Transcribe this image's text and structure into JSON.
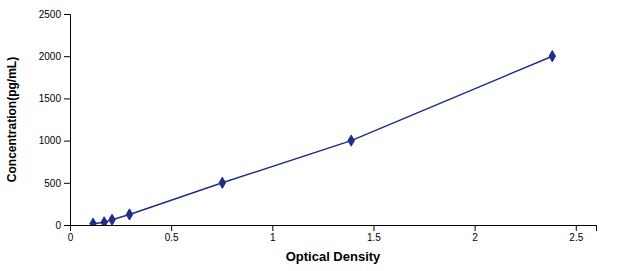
{
  "chart_data": {
    "type": "line",
    "xlabel": "Optical Density",
    "ylabel": "Concentration(pg/mL)",
    "x": [
      0.114,
      0.169,
      0.208,
      0.294,
      0.753,
      1.39,
      2.384
    ],
    "values": [
      15.6,
      31.25,
      62.5,
      125,
      500,
      1000,
      2000
    ],
    "color": "#1F2D8A",
    "marker": "diamond",
    "xlim": [
      0.0,
      2.6
    ],
    "ylim": [
      0,
      2500
    ],
    "xticks": [
      0,
      0.5,
      1,
      1.5,
      2,
      2.5
    ],
    "yticks": [
      0,
      500,
      1000,
      1500,
      2000,
      2500
    ],
    "grid": false
  }
}
